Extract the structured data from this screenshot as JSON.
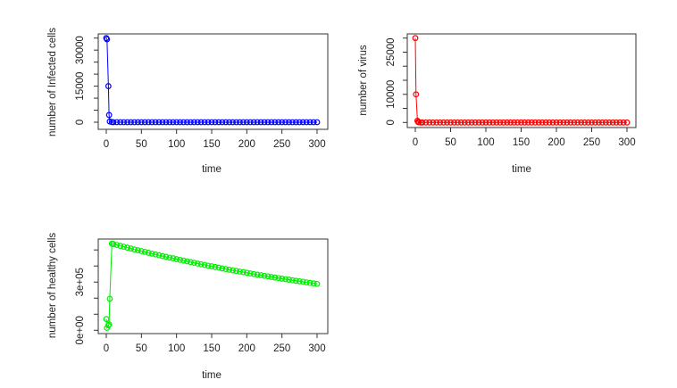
{
  "chart_data": [
    {
      "type": "line",
      "xlabel": "time",
      "ylabel": "number of Infected cells",
      "color": "#0000ff",
      "xlim": [
        0,
        300
      ],
      "ylim": [
        0,
        35000
      ],
      "x_ticks": [
        0,
        50,
        100,
        150,
        200,
        250,
        300
      ],
      "x_tick_labels": [
        "0",
        "50",
        "100",
        "150",
        "200",
        "250",
        "300"
      ],
      "y_ticks": [
        0,
        5000,
        10000,
        15000,
        20000,
        25000,
        30000,
        35000
      ],
      "y_tick_labels": [
        {
          "value": 0,
          "label": "0"
        },
        {
          "value": 15000,
          "label": "15000"
        },
        {
          "value": 30000,
          "label": "30000"
        }
      ],
      "x": [
        0,
        1,
        3,
        4,
        5,
        8,
        10,
        15,
        20,
        25,
        30,
        35,
        40,
        45,
        50,
        55,
        60,
        65,
        70,
        75,
        80,
        85,
        90,
        95,
        100,
        105,
        110,
        115,
        120,
        125,
        130,
        135,
        140,
        145,
        150,
        155,
        160,
        165,
        170,
        175,
        180,
        185,
        190,
        195,
        200,
        205,
        210,
        215,
        220,
        225,
        230,
        235,
        240,
        245,
        250,
        255,
        260,
        265,
        270,
        275,
        280,
        285,
        290,
        295,
        300
      ],
      "y": [
        35000,
        34500,
        15000,
        3000,
        300,
        50,
        0,
        0,
        0,
        0,
        0,
        0,
        0,
        0,
        0,
        0,
        0,
        0,
        0,
        0,
        0,
        0,
        0,
        0,
        0,
        0,
        0,
        0,
        0,
        0,
        0,
        0,
        0,
        0,
        0,
        0,
        0,
        0,
        0,
        0,
        0,
        0,
        0,
        0,
        0,
        0,
        0,
        0,
        0,
        0,
        0,
        0,
        0,
        0,
        0,
        0,
        0,
        0,
        0,
        0,
        0,
        0,
        0,
        0,
        0
      ]
    },
    {
      "type": "line",
      "xlabel": "time",
      "ylabel": "number of virus",
      "color": "#ff0000",
      "xlim": [
        0,
        300
      ],
      "ylim": [
        0,
        30000
      ],
      "x_ticks": [
        0,
        50,
        100,
        150,
        200,
        250,
        300
      ],
      "x_tick_labels": [
        "0",
        "50",
        "100",
        "150",
        "200",
        "250",
        "300"
      ],
      "y_ticks": [
        0,
        5000,
        10000,
        15000,
        20000,
        25000,
        30000
      ],
      "y_tick_labels": [
        {
          "value": 0,
          "label": "0"
        },
        {
          "value": 10000,
          "label": "10000"
        },
        {
          "value": 25000,
          "label": "25000"
        }
      ],
      "x": [
        0,
        1,
        3,
        4,
        5,
        8,
        10,
        15,
        20,
        25,
        30,
        35,
        40,
        45,
        50,
        55,
        60,
        65,
        70,
        75,
        80,
        85,
        90,
        95,
        100,
        105,
        110,
        115,
        120,
        125,
        130,
        135,
        140,
        145,
        150,
        155,
        160,
        165,
        170,
        175,
        180,
        185,
        190,
        195,
        200,
        205,
        210,
        215,
        220,
        225,
        230,
        235,
        240,
        245,
        250,
        255,
        260,
        265,
        270,
        275,
        280,
        285,
        290,
        295,
        300
      ],
      "y": [
        30000,
        10000,
        600,
        150,
        50,
        0,
        0,
        0,
        0,
        0,
        0,
        0,
        0,
        0,
        0,
        0,
        0,
        0,
        0,
        0,
        0,
        0,
        0,
        0,
        0,
        0,
        0,
        0,
        0,
        0,
        0,
        0,
        0,
        0,
        0,
        0,
        0,
        0,
        0,
        0,
        0,
        0,
        0,
        0,
        0,
        0,
        0,
        0,
        0,
        0,
        0,
        0,
        0,
        0,
        0,
        0,
        0,
        0,
        0,
        0,
        0,
        0,
        0,
        0,
        0
      ]
    },
    {
      "type": "line",
      "xlabel": "time",
      "ylabel": "number of healthy cells",
      "color": "#00ee00",
      "xlim": [
        0,
        300
      ],
      "ylim": [
        0,
        540000
      ],
      "x_ticks": [
        0,
        50,
        100,
        150,
        200,
        250,
        300
      ],
      "x_tick_labels": [
        "0",
        "50",
        "100",
        "150",
        "200",
        "250",
        "300"
      ],
      "y_ticks": [
        0,
        100000,
        200000,
        300000,
        400000,
        500000
      ],
      "y_tick_labels": [
        {
          "value": 0,
          "label": "0e+00"
        },
        {
          "value": 300000,
          "label": "3e+05"
        }
      ],
      "x": [
        0,
        1,
        3,
        4,
        5,
        8,
        10,
        15,
        20,
        25,
        30,
        35,
        40,
        45,
        50,
        55,
        60,
        65,
        70,
        75,
        80,
        85,
        90,
        95,
        100,
        105,
        110,
        115,
        120,
        125,
        130,
        135,
        140,
        145,
        150,
        155,
        160,
        165,
        170,
        175,
        180,
        185,
        190,
        195,
        200,
        205,
        210,
        215,
        220,
        225,
        230,
        235,
        240,
        245,
        250,
        255,
        260,
        265,
        270,
        275,
        280,
        285,
        290,
        295,
        300
      ],
      "y": [
        70000,
        15000,
        30000,
        37000,
        196000,
        539000,
        537000,
        531000,
        525000,
        520000,
        514000,
        509000,
        503000,
        498000,
        493000,
        488000,
        482000,
        477000,
        472000,
        467000,
        462000,
        457000,
        452000,
        448000,
        443000,
        438000,
        434000,
        429000,
        424000,
        420000,
        415000,
        411000,
        407000,
        402000,
        398000,
        394000,
        390000,
        385000,
        381000,
        377000,
        373000,
        369000,
        365000,
        362000,
        358000,
        354000,
        350000,
        346000,
        343000,
        339000,
        336000,
        332000,
        328000,
        325000,
        321000,
        318000,
        315000,
        311000,
        308000,
        305000,
        302000,
        298000,
        295000,
        292000,
        289000
      ]
    }
  ]
}
